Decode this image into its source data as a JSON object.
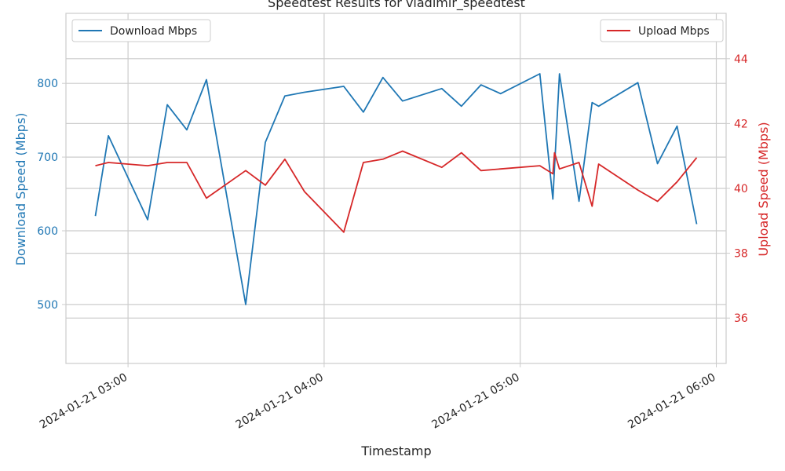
{
  "chart_data": {
    "type": "line",
    "title": "Speedtest Results for vladimir_speedtest",
    "xlabel": "Timestamp",
    "y_left_label": "Download Speed (Mbps)",
    "y_right_label": "Upload Speed (Mbps)",
    "x_range": [
      "2024-01-21 02:41",
      "2024-01-21 06:03"
    ],
    "y_left_range": [
      420,
      895
    ],
    "y_right_range": [
      34.6,
      45.4
    ],
    "y_left_ticks": [
      500,
      600,
      700,
      800
    ],
    "y_right_ticks": [
      36,
      38,
      40,
      42,
      44
    ],
    "x_ticks": [
      "2024-01-21 03:00",
      "2024-01-21 04:00",
      "2024-01-21 05:00",
      "2024-01-21 06:00"
    ],
    "grid": true,
    "colors": {
      "download": "#1f77b4",
      "upload": "#d62728",
      "grid": "#cccccc",
      "axis": "#cccccc",
      "text": "#262626"
    },
    "series": [
      {
        "name": "Download Mbps",
        "axis": "left",
        "legend_position": "upper-left",
        "points": [
          [
            "2024-01-21 02:50",
            620
          ],
          [
            "2024-01-21 02:54",
            729
          ],
          [
            "2024-01-21 03:06",
            615
          ],
          [
            "2024-01-21 03:12",
            771
          ],
          [
            "2024-01-21 03:18",
            737
          ],
          [
            "2024-01-21 03:24",
            805
          ],
          [
            "2024-01-21 03:36",
            500
          ],
          [
            "2024-01-21 03:42",
            720
          ],
          [
            "2024-01-21 03:48",
            783
          ],
          [
            "2024-01-21 03:54",
            788
          ],
          [
            "2024-01-21 04:06",
            796
          ],
          [
            "2024-01-21 04:12",
            761
          ],
          [
            "2024-01-21 04:18",
            808
          ],
          [
            "2024-01-21 04:24",
            776
          ],
          [
            "2024-01-21 04:36",
            793
          ],
          [
            "2024-01-21 04:42",
            769
          ],
          [
            "2024-01-21 04:48",
            798
          ],
          [
            "2024-01-21 04:54",
            786
          ],
          [
            "2024-01-21 05:06",
            813
          ],
          [
            "2024-01-21 05:10",
            643
          ],
          [
            "2024-01-21 05:12",
            813
          ],
          [
            "2024-01-21 05:18",
            640
          ],
          [
            "2024-01-21 05:22",
            774
          ],
          [
            "2024-01-21 05:24",
            769
          ],
          [
            "2024-01-21 05:36",
            801
          ],
          [
            "2024-01-21 05:42",
            691
          ],
          [
            "2024-01-21 05:48",
            742
          ],
          [
            "2024-01-21 05:54",
            609
          ]
        ]
      },
      {
        "name": "Upload Mbps",
        "axis": "right",
        "legend_position": "upper-right",
        "points": [
          [
            "2024-01-21 02:50",
            40.7
          ],
          [
            "2024-01-21 02:54",
            40.8
          ],
          [
            "2024-01-21 03:06",
            40.7
          ],
          [
            "2024-01-21 03:12",
            40.8
          ],
          [
            "2024-01-21 03:18",
            40.8
          ],
          [
            "2024-01-21 03:24",
            39.7
          ],
          [
            "2024-01-21 03:36",
            40.55
          ],
          [
            "2024-01-21 03:42",
            40.1
          ],
          [
            "2024-01-21 03:48",
            40.9
          ],
          [
            "2024-01-21 03:54",
            39.9
          ],
          [
            "2024-01-21 04:06",
            38.65
          ],
          [
            "2024-01-21 04:12",
            40.8
          ],
          [
            "2024-01-21 04:18",
            40.9
          ],
          [
            "2024-01-21 04:24",
            41.15
          ],
          [
            "2024-01-21 04:36",
            40.65
          ],
          [
            "2024-01-21 04:42",
            41.1
          ],
          [
            "2024-01-21 04:48",
            40.55
          ],
          [
            "2024-01-21 04:54",
            40.6
          ],
          [
            "2024-01-21 05:06",
            40.7
          ],
          [
            "2024-01-21 05:10",
            40.45
          ],
          [
            "2024-01-21 05:10:30",
            41.1
          ],
          [
            "2024-01-21 05:12",
            40.6
          ],
          [
            "2024-01-21 05:18",
            40.8
          ],
          [
            "2024-01-21 05:22",
            39.45
          ],
          [
            "2024-01-21 05:24",
            40.75
          ],
          [
            "2024-01-21 05:36",
            39.95
          ],
          [
            "2024-01-21 05:42",
            39.6
          ],
          [
            "2024-01-21 05:48",
            40.2
          ],
          [
            "2024-01-21 05:54",
            40.95
          ]
        ]
      }
    ]
  }
}
